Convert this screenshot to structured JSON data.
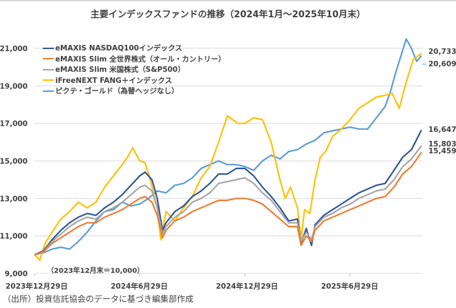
{
  "chart_data": {
    "type": "line",
    "title": "主要インデックスファンドの推移（2024年1月～2025年10月末）",
    "xlabel": "",
    "ylabel": "",
    "ylim": [
      9000,
      21000
    ],
    "yticks": [
      9000,
      11000,
      13000,
      15000,
      17000,
      19000,
      21000
    ],
    "ytick_labels": [
      "9,000",
      "11,000",
      "13,000",
      "15,000",
      "17,000",
      "19,000",
      "21,000"
    ],
    "xticks_month_offset": [
      0,
      6,
      12,
      18
    ],
    "xtick_labels": [
      "2023年12月29日",
      "2024年6月29日",
      "2024年12月29日",
      "2025年6月29日"
    ],
    "x_unit": "months since 2023-12-29",
    "xlim": [
      0,
      22.1
    ],
    "grid": true,
    "legend_position": "top-left",
    "annotation": "（2023年12月末＝10,000）",
    "series": [
      {
        "name": "eMAXIS NASDAQ100インデックス",
        "color": "#2f5597",
        "end_label": "16,647",
        "x": [
          0,
          0.5,
          1,
          1.5,
          2,
          2.5,
          3,
          3.5,
          4,
          4.5,
          5,
          5.5,
          6,
          6.3,
          6.7,
          7,
          7.3,
          7.5,
          8,
          8.5,
          9,
          9.5,
          10,
          10.5,
          11,
          11.5,
          12,
          12.5,
          13,
          13.5,
          14,
          14.5,
          15,
          15.2,
          15.5,
          15.8,
          16,
          16.3,
          16.5,
          17,
          17.5,
          18,
          18.5,
          19,
          19.5,
          20,
          20.5,
          21,
          21.5,
          22.07
        ],
        "y": [
          10000,
          10200,
          10800,
          11300,
          11700,
          12000,
          12200,
          12100,
          12500,
          12800,
          13200,
          13700,
          14200,
          14400,
          14000,
          13000,
          11300,
          11700,
          12300,
          12600,
          13100,
          13400,
          13800,
          14300,
          14300,
          14600,
          14600,
          14200,
          13600,
          13100,
          12500,
          11800,
          11900,
          10600,
          11400,
          10500,
          11600,
          11900,
          12100,
          12400,
          12700,
          13000,
          13300,
          13500,
          13700,
          13800,
          14500,
          15200,
          15600,
          16647
        ]
      },
      {
        "name": "eMAXIS Slim 全世界株式（オール・カントリー）",
        "color": "#ed7d31",
        "end_label": "15,459",
        "x": [
          0,
          0.5,
          1,
          1.5,
          2,
          2.5,
          3,
          3.5,
          4,
          4.5,
          5,
          5.5,
          6,
          6.3,
          6.7,
          7,
          7.3,
          7.5,
          8,
          8.5,
          9,
          9.5,
          10,
          10.5,
          11,
          11.5,
          12,
          12.5,
          13,
          13.5,
          14,
          14.5,
          15,
          15.2,
          15.5,
          15.8,
          16,
          16.3,
          16.5,
          17,
          17.5,
          18,
          18.5,
          19,
          19.5,
          20,
          20.5,
          21,
          21.5,
          22.07
        ],
        "y": [
          10000,
          10150,
          10600,
          10900,
          11200,
          11500,
          11700,
          11700,
          12000,
          12200,
          12400,
          12700,
          13000,
          13100,
          12800,
          12100,
          10900,
          11300,
          11800,
          12000,
          12300,
          12500,
          12700,
          12900,
          12900,
          13000,
          13000,
          12900,
          12700,
          12300,
          11900,
          11500,
          11500,
          10500,
          11000,
          10700,
          11300,
          11600,
          11800,
          12000,
          12200,
          12400,
          12600,
          12800,
          13000,
          13100,
          13600,
          14300,
          14700,
          15459
        ]
      },
      {
        "name": "eMAXIS Slim 米国株式（S&P500）",
        "color": "#a5a5a5",
        "end_label": "15,803",
        "x": [
          0,
          0.5,
          1,
          1.5,
          2,
          2.5,
          3,
          3.5,
          4,
          4.5,
          5,
          5.5,
          6,
          6.3,
          6.7,
          7,
          7.3,
          7.5,
          8,
          8.5,
          9,
          9.5,
          10,
          10.5,
          11,
          11.5,
          12,
          12.5,
          13,
          13.5,
          14,
          14.5,
          15,
          15.2,
          15.5,
          15.8,
          16,
          16.3,
          16.5,
          17,
          17.5,
          18,
          18.5,
          19,
          19.5,
          20,
          20.5,
          21,
          21.5,
          22.07
        ],
        "y": [
          10000,
          10150,
          10700,
          11100,
          11500,
          11800,
          12000,
          11900,
          12300,
          12500,
          12800,
          13200,
          13600,
          13700,
          13400,
          12500,
          11100,
          11500,
          12000,
          12300,
          12800,
          13000,
          13300,
          13800,
          13900,
          14000,
          14100,
          13800,
          13300,
          12900,
          12300,
          11700,
          11700,
          10700,
          11200,
          10800,
          11500,
          11800,
          12000,
          12200,
          12500,
          12700,
          13000,
          13200,
          13400,
          13500,
          14000,
          14700,
          15100,
          15803
        ]
      },
      {
        "name": "iFreeNEXT FANG＋インデックス",
        "color": "#ffc000",
        "end_label": "20,733",
        "x": [
          0,
          0.3,
          0.6,
          1,
          1.5,
          2,
          2.5,
          3,
          3.5,
          4,
          4.5,
          5,
          5.3,
          5.6,
          6,
          6.3,
          6.6,
          7,
          7.2,
          7.5,
          8,
          8.5,
          9,
          9.5,
          10,
          10.5,
          11,
          11.3,
          11.6,
          12,
          12.5,
          13,
          13.5,
          14,
          14.3,
          14.6,
          15,
          15.2,
          15.4,
          15.7,
          16,
          16.3,
          16.6,
          17,
          17.5,
          18,
          18.5,
          19,
          19.5,
          20,
          20.4,
          20.8,
          21.2,
          21.6,
          22.07
        ],
        "y": [
          10000,
          9700,
          10600,
          11200,
          11900,
          12300,
          12800,
          12500,
          12800,
          13600,
          14200,
          14800,
          15200,
          15700,
          15000,
          14900,
          14000,
          12500,
          10800,
          12300,
          11800,
          12500,
          13100,
          14100,
          14700,
          16000,
          17400,
          17200,
          17000,
          17000,
          17300,
          17200,
          16000,
          14000,
          13000,
          13600,
          12500,
          10800,
          12400,
          12200,
          14000,
          15200,
          15500,
          16300,
          16700,
          17200,
          17800,
          18100,
          18400,
          18500,
          18600,
          17800,
          19200,
          20400,
          20733
        ]
      },
      {
        "name": "ピクテ・ゴールド（為替ヘッジなし）",
        "color": "#5b9bd5",
        "end_label": "20,609",
        "x": [
          0,
          0.5,
          1,
          1.5,
          2,
          2.5,
          3,
          3.5,
          4,
          4.5,
          5,
          5.5,
          6,
          6.5,
          7,
          7.5,
          8,
          8.5,
          9,
          9.5,
          10,
          10.5,
          11,
          11.5,
          12,
          12.5,
          13,
          13.5,
          14,
          14.5,
          15,
          15.5,
          16,
          16.5,
          17,
          17.5,
          18,
          18.5,
          19,
          19.5,
          20,
          20.3,
          20.6,
          20.9,
          21.2,
          21.5,
          21.8,
          22.07
        ],
        "y": [
          10000,
          10100,
          10300,
          10400,
          10300,
          10700,
          11200,
          11800,
          12300,
          12400,
          12800,
          12600,
          12700,
          13000,
          13400,
          13300,
          13700,
          13800,
          14100,
          14600,
          14800,
          15000,
          14800,
          14800,
          14700,
          14500,
          15000,
          15300,
          15100,
          15500,
          15600,
          15900,
          16100,
          16500,
          16600,
          16700,
          16800,
          16700,
          16700,
          17300,
          17900,
          18700,
          19700,
          20600,
          21500,
          21000,
          20300,
          20609
        ]
      }
    ]
  },
  "source": "（出所）投資信託協会のデータに基づき編集部作成"
}
